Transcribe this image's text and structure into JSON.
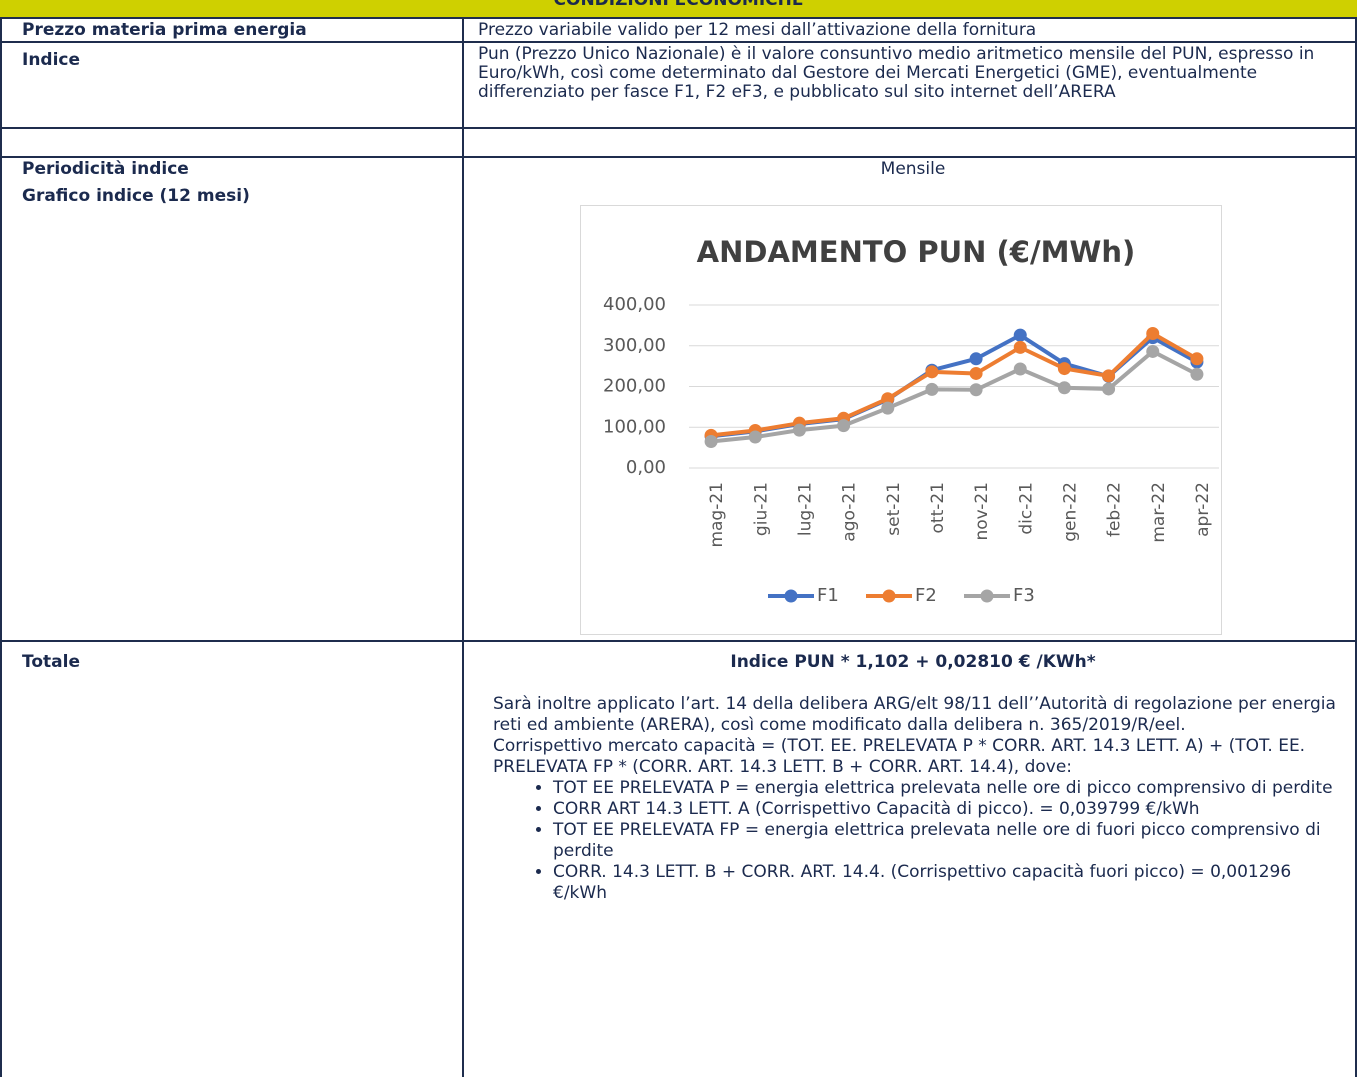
{
  "header": {
    "title": "CONDIZIONI ECONOMICHE"
  },
  "table": {
    "rows": [
      {
        "label": "Prezzo materia prima energia",
        "value": "Prezzo variabile valido per 12 mesi dall’attivazione della fornitura"
      },
      {
        "label": "Indice",
        "value": "Pun (Prezzo Unico Nazionale) è il valore consuntivo medio aritmetico mensile del PUN, espresso in Euro/kWh, così come determinato dal Gestore dei Mercati Energetici (GME), eventualmente differenziato per fasce F1, F2 eF3, e pubblicato sul sito internet dell’ARERA"
      },
      {
        "label": "Periodicità indice",
        "value": "Mensile"
      },
      {
        "label": "Grafico indice (12 mesi)"
      },
      {
        "label": "Totale",
        "formula": "Indice PUN * 1,102 + 0,02810 € /KWh*",
        "paragraphs": [
          "Sarà inoltre applicato l’art. 14 della delibera ARG/elt 98/11 dell’’Autorità di regolazione per energia reti ed ambiente (ARERA), così come modificato dalla delibera n. 365/2019/R/eel.",
          "Corrispettivo mercato capacità = (TOT. EE. PRELEVATA P * CORR. ART. 14.3 LETT. A) + (TOT. EE. PRELEVATA FP * (CORR. ART. 14.3 LETT. B + CORR. ART. 14.4), dove:"
        ],
        "bullets": [
          "TOT EE PRELEVATA P = energia elettrica prelevata nelle ore di picco comprensivo di perdite",
          "CORR ART 14.3 LETT. A (Corrispettivo Capacità di picco). = 0,039799 €/kWh",
          "TOT EE PRELEVATA FP = energia elettrica prelevata nelle ore di fuori picco comprensivo di perdite",
          "CORR. 14.3 LETT. B + CORR. ART. 14.4. (Corrispettivo capacità fuori picco) = 0,001296 €/kWh"
        ]
      }
    ]
  },
  "chart_data": {
    "type": "line",
    "title": "ANDAMENTO PUN (€/MWh)",
    "categories": [
      "mag-21",
      "giu-21",
      "lug-21",
      "ago-21",
      "set-21",
      "ott-21",
      "nov-21",
      "dic-21",
      "gen-22",
      "feb-22",
      "mar-22",
      "apr-22"
    ],
    "series": [
      {
        "name": "F1",
        "color": "#4472c4",
        "values": [
          78,
          90,
          108,
          120,
          168,
          240,
          268,
          326,
          256,
          225,
          320,
          260
        ]
      },
      {
        "name": "F2",
        "color": "#ed7d31",
        "values": [
          80,
          92,
          110,
          122,
          170,
          236,
          232,
          296,
          244,
          226,
          330,
          268
        ]
      },
      {
        "name": "F3",
        "color": "#a5a5a5",
        "values": [
          65,
          76,
          93,
          104,
          147,
          193,
          192,
          243,
          197,
          194,
          286,
          230
        ]
      }
    ],
    "ylim": [
      0,
      400
    ],
    "yticks": [
      {
        "value": 0,
        "label": "0,00"
      },
      {
        "value": 100,
        "label": "100,00"
      },
      {
        "value": 200,
        "label": "200,00"
      },
      {
        "value": 300,
        "label": "300,00"
      },
      {
        "value": 400,
        "label": "400,00"
      }
    ],
    "grid": true,
    "legend": "bottom"
  }
}
